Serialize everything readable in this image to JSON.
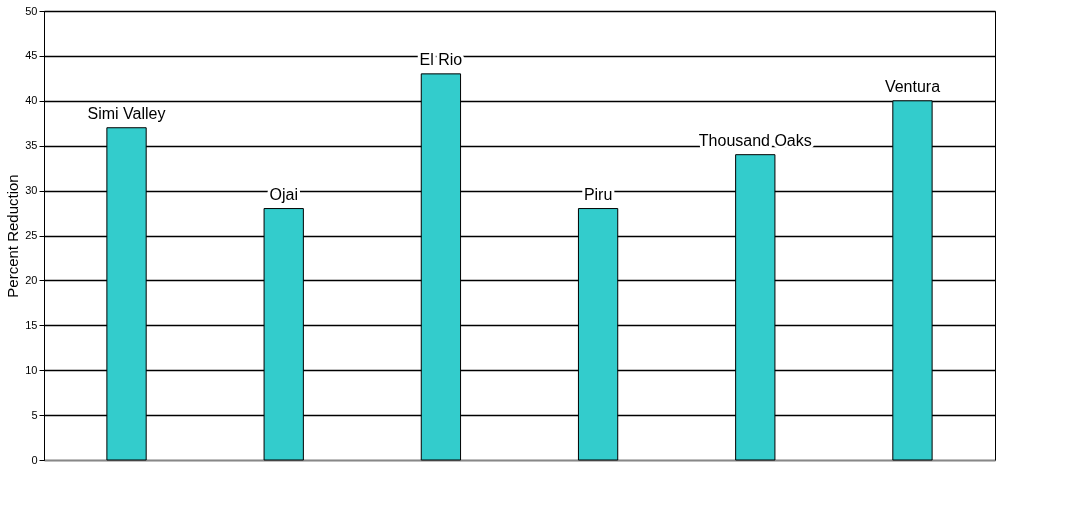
{
  "chart_data": {
    "type": "bar",
    "ylabel": "Percent Reduction",
    "categories": [
      "Simi Valley",
      "Ojai",
      "El Rio",
      "Piru",
      "Thousand Oaks",
      "Ventura"
    ],
    "values": [
      37,
      28,
      43,
      28,
      34,
      40
    ],
    "color": "#33cccc",
    "ylim": [
      0,
      50
    ],
    "yticks": [
      0,
      5,
      10,
      15,
      20,
      25,
      30,
      35,
      40,
      45,
      50
    ],
    "grid": "y",
    "tick_labels": "y"
  }
}
